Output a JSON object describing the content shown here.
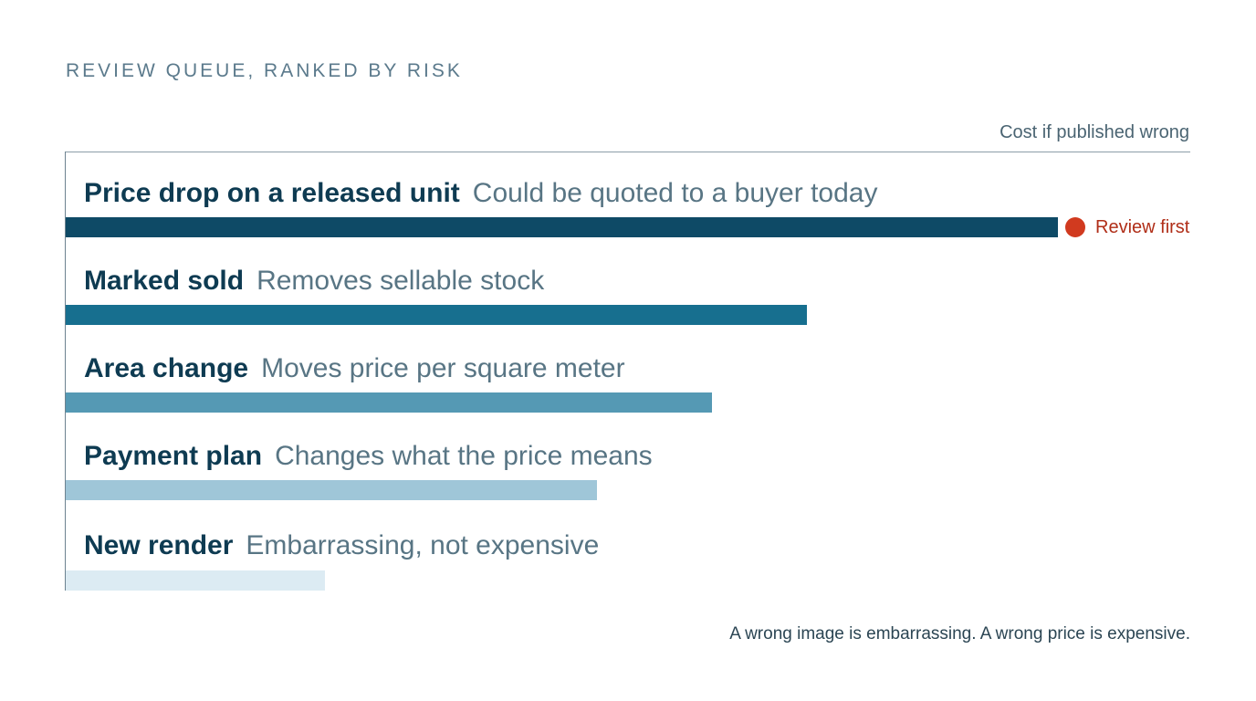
{
  "chart_data": {
    "type": "bar",
    "orientation": "horizontal",
    "title": "REVIEW QUEUE, RANKED BY RISK",
    "xlabel": "Cost if published wrong",
    "ylabel": "",
    "xlim": [
      0,
      100
    ],
    "grid": false,
    "legend": "none",
    "categories": [
      {
        "name": "Price drop on a released unit",
        "description": "Could be quoted to a buyer today",
        "value": 100,
        "color": "#0e4a66"
      },
      {
        "name": "Marked sold",
        "description": "Removes sellable stock",
        "value": 74.7,
        "color": "#176f8f"
      },
      {
        "name": "Area change",
        "description": "Moves price per square meter",
        "value": 65.1,
        "color": "#5599b4"
      },
      {
        "name": "Payment plan",
        "description": "Changes what the price means",
        "value": 53.5,
        "color": "#9fc6d8"
      },
      {
        "name": "New render",
        "description": "Embarrassing, not expensive",
        "value": 26.1,
        "color": "#dcebf3"
      }
    ],
    "annotation": {
      "category_index": 0,
      "text": "Review first",
      "color": "#d13a1f"
    },
    "footnote": "A wrong image is embarrassing. A wrong price is expensive."
  }
}
